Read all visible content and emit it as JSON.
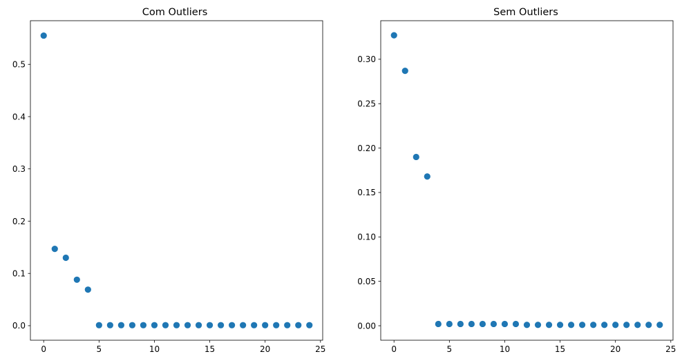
{
  "chart_data": [
    {
      "type": "scatter",
      "title": "Com Outliers",
      "xlabel": "",
      "ylabel": "",
      "xlim": [
        -1.2,
        25.2
      ],
      "ylim": [
        -0.0278,
        0.5835
      ],
      "xticks": [
        0,
        5,
        10,
        15,
        20,
        25
      ],
      "yticks": [
        0.0,
        0.1,
        0.2,
        0.3,
        0.4,
        0.5
      ],
      "ytick_labels": [
        "0.0",
        "0.1",
        "0.2",
        "0.3",
        "0.4",
        "0.5"
      ],
      "grid": false,
      "color": "#1f77b4",
      "x": [
        0,
        1,
        2,
        3,
        4,
        5,
        6,
        7,
        8,
        9,
        10,
        11,
        12,
        13,
        14,
        15,
        16,
        17,
        18,
        19,
        20,
        21,
        22,
        23,
        24
      ],
      "y": [
        0.555,
        0.147,
        0.13,
        0.088,
        0.069,
        0.001,
        0.001,
        0.001,
        0.001,
        0.001,
        0.001,
        0.001,
        0.001,
        0.001,
        0.001,
        0.001,
        0.001,
        0.001,
        0.001,
        0.001,
        0.001,
        0.001,
        0.001,
        0.001,
        0.001
      ]
    },
    {
      "type": "scatter",
      "title": "Sem Outliers",
      "xlabel": "",
      "ylabel": "",
      "xlim": [
        -1.2,
        25.2
      ],
      "ylim": [
        -0.0163,
        0.3434
      ],
      "xticks": [
        0,
        5,
        10,
        15,
        20,
        25
      ],
      "yticks": [
        0.0,
        0.05,
        0.1,
        0.15,
        0.2,
        0.25,
        0.3
      ],
      "ytick_labels": [
        "0.00",
        "0.05",
        "0.10",
        "0.15",
        "0.20",
        "0.25",
        "0.30"
      ],
      "grid": false,
      "color": "#1f77b4",
      "x": [
        0,
        1,
        2,
        3,
        4,
        5,
        6,
        7,
        8,
        9,
        10,
        11,
        12,
        13,
        14,
        15,
        16,
        17,
        18,
        19,
        20,
        21,
        22,
        23,
        24
      ],
      "y": [
        0.327,
        0.287,
        0.19,
        0.168,
        0.002,
        0.002,
        0.002,
        0.002,
        0.002,
        0.002,
        0.002,
        0.002,
        0.001,
        0.001,
        0.001,
        0.001,
        0.001,
        0.001,
        0.001,
        0.001,
        0.001,
        0.001,
        0.001,
        0.001,
        0.001
      ]
    }
  ]
}
